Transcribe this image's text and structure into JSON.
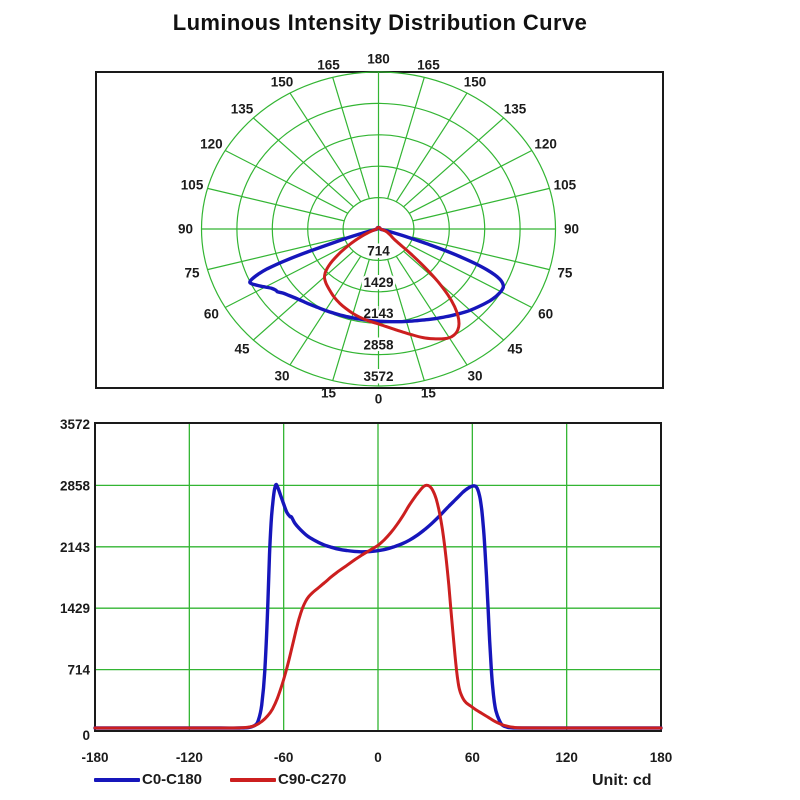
{
  "title": "Luminous Intensity Distribution Curve",
  "unit_label": "Unit: cd",
  "colors": {
    "grid": "#33b533",
    "frame": "#1a1a1a",
    "text": "#1b1b1b",
    "background": "#ffffff",
    "c0_series": "#1616bb",
    "c90_series": "#cc1f1f"
  },
  "legend": {
    "items": [
      {
        "label": "C0-C180",
        "color": "#1616bb"
      },
      {
        "label": "C90-C270",
        "color": "#cc1f1f"
      }
    ]
  },
  "chart_data": [
    {
      "type": "polar-line",
      "description": "luminous intensity polar diagram, 0 deg at bottom (nadir), angles increase to 180 at top on both sides",
      "angle_tick_step_deg": 15,
      "angle_tick_labels": [
        0,
        15,
        30,
        45,
        60,
        75,
        90,
        105,
        120,
        135,
        150,
        165,
        180
      ],
      "r_ticks": [
        714,
        1429,
        2143,
        2858,
        3572
      ],
      "r_max": 3572,
      "grid": true,
      "series_ref": "series"
    },
    {
      "type": "line",
      "description": "same two intensity traces vs angle in degrees",
      "x_ticks": [
        -180,
        -120,
        -60,
        0,
        60,
        120,
        180
      ],
      "y_ticks": [
        0,
        714,
        1429,
        2143,
        2858,
        3572
      ],
      "xlim": [
        -180,
        180
      ],
      "ylim": [
        0,
        3572
      ],
      "x_grid_step": 60,
      "grid": true,
      "legend_position": "bottom-left",
      "series_ref": "series"
    }
  ],
  "series": [
    {
      "name": "C0-C180",
      "color": "#1616bb",
      "points": [
        [
          -180,
          35
        ],
        [
          -150,
          35
        ],
        [
          -120,
          35
        ],
        [
          -100,
          35
        ],
        [
          -88,
          35
        ],
        [
          -82,
          42
        ],
        [
          -78,
          70
        ],
        [
          -76,
          130
        ],
        [
          -74,
          300
        ],
        [
          -72,
          700
        ],
        [
          -70,
          1500
        ],
        [
          -69,
          2050
        ],
        [
          -68,
          2420
        ],
        [
          -67,
          2640
        ],
        [
          -66,
          2790
        ],
        [
          -65,
          2865
        ],
        [
          -64,
          2845
        ],
        [
          -62,
          2745
        ],
        [
          -60,
          2640
        ],
        [
          -58,
          2545
        ],
        [
          -56,
          2495
        ],
        [
          -55,
          2490
        ],
        [
          -53,
          2420
        ],
        [
          -50,
          2355
        ],
        [
          -45,
          2270
        ],
        [
          -40,
          2215
        ],
        [
          -35,
          2170
        ],
        [
          -30,
          2140
        ],
        [
          -25,
          2115
        ],
        [
          -20,
          2100
        ],
        [
          -15,
          2090
        ],
        [
          -10,
          2085
        ],
        [
          -5,
          2088
        ],
        [
          0,
          2098
        ],
        [
          5,
          2115
        ],
        [
          10,
          2142
        ],
        [
          15,
          2176
        ],
        [
          20,
          2220
        ],
        [
          25,
          2278
        ],
        [
          30,
          2348
        ],
        [
          35,
          2428
        ],
        [
          40,
          2518
        ],
        [
          45,
          2615
        ],
        [
          50,
          2705
        ],
        [
          54,
          2778
        ],
        [
          57,
          2822
        ],
        [
          60,
          2850
        ],
        [
          62,
          2848
        ],
        [
          63,
          2826
        ],
        [
          64,
          2780
        ],
        [
          65,
          2700
        ],
        [
          66,
          2570
        ],
        [
          67,
          2380
        ],
        [
          68,
          2120
        ],
        [
          69,
          1800
        ],
        [
          70,
          1430
        ],
        [
          71,
          1060
        ],
        [
          72,
          740
        ],
        [
          73,
          500
        ],
        [
          74,
          340
        ],
        [
          75,
          235
        ],
        [
          77,
          130
        ],
        [
          79,
          70
        ],
        [
          82,
          45
        ],
        [
          86,
          36
        ],
        [
          100,
          35
        ],
        [
          130,
          35
        ],
        [
          160,
          35
        ],
        [
          180,
          35
        ]
      ]
    },
    {
      "name": "C90-C270",
      "color": "#cc1f1f",
      "points": [
        [
          -180,
          35
        ],
        [
          -150,
          35
        ],
        [
          -120,
          35
        ],
        [
          -100,
          35
        ],
        [
          -88,
          36
        ],
        [
          -82,
          45
        ],
        [
          -78,
          65
        ],
        [
          -74,
          110
        ],
        [
          -70,
          180
        ],
        [
          -67,
          260
        ],
        [
          -64,
          380
        ],
        [
          -61,
          540
        ],
        [
          -58,
          730
        ],
        [
          -55,
          950
        ],
        [
          -52,
          1180
        ],
        [
          -50,
          1320
        ],
        [
          -48,
          1430
        ],
        [
          -46,
          1510
        ],
        [
          -44,
          1565
        ],
        [
          -41,
          1620
        ],
        [
          -38,
          1665
        ],
        [
          -34,
          1725
        ],
        [
          -30,
          1790
        ],
        [
          -25,
          1860
        ],
        [
          -20,
          1925
        ],
        [
          -15,
          1990
        ],
        [
          -10,
          2050
        ],
        [
          -5,
          2105
        ],
        [
          0,
          2160
        ],
        [
          4,
          2225
        ],
        [
          8,
          2305
        ],
        [
          12,
          2400
        ],
        [
          16,
          2510
        ],
        [
          20,
          2630
        ],
        [
          24,
          2735
        ],
        [
          27,
          2805
        ],
        [
          29,
          2845
        ],
        [
          31,
          2860
        ],
        [
          33,
          2845
        ],
        [
          35,
          2795
        ],
        [
          37,
          2700
        ],
        [
          39,
          2550
        ],
        [
          41,
          2340
        ],
        [
          43,
          2060
        ],
        [
          45,
          1700
        ],
        [
          47,
          1280
        ],
        [
          49,
          880
        ],
        [
          50,
          700
        ],
        [
          51,
          560
        ],
        [
          52,
          470
        ],
        [
          54,
          380
        ],
        [
          56,
          330
        ],
        [
          59,
          290
        ],
        [
          62,
          250
        ],
        [
          66,
          205
        ],
        [
          70,
          160
        ],
        [
          74,
          115
        ],
        [
          78,
          80
        ],
        [
          82,
          57
        ],
        [
          86,
          43
        ],
        [
          92,
          36
        ],
        [
          120,
          35
        ],
        [
          150,
          35
        ],
        [
          180,
          35
        ]
      ]
    }
  ]
}
